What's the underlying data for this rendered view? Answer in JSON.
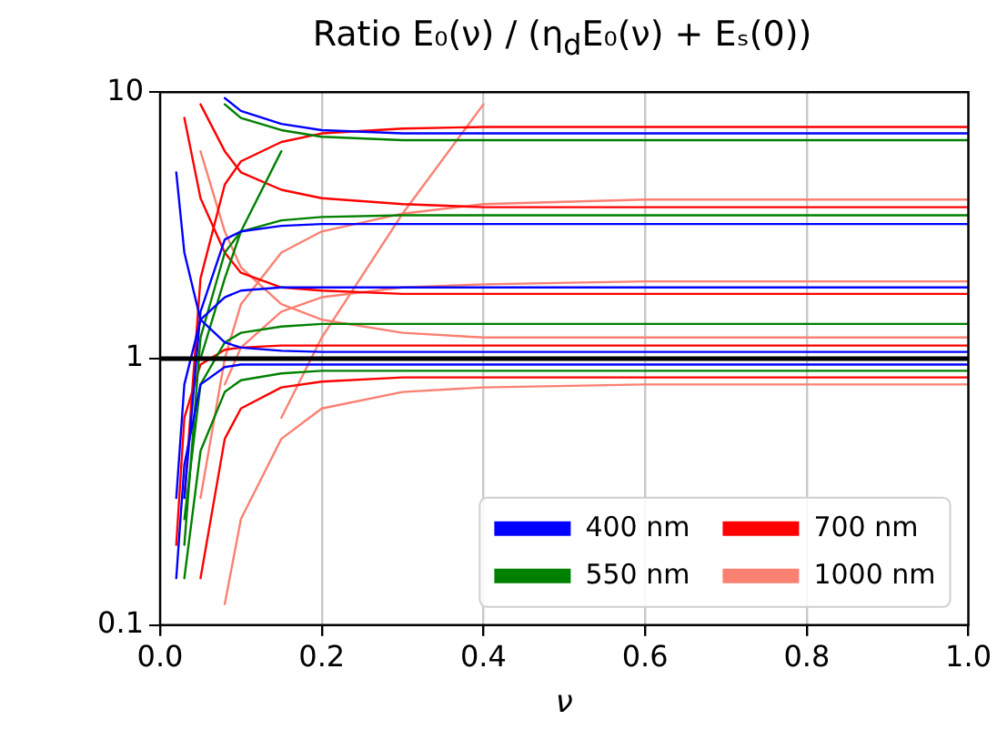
{
  "chart_data": {
    "type": "line",
    "title": "Ratio E₀(ν) / (η$_{d}$E₀(ν) + Eₛ(0))",
    "xlabel": "ν",
    "log": "y",
    "grid": "x",
    "legend": "bottom right",
    "marker": "none",
    "line_style": "solid",
    "xlim": [
      0,
      1
    ],
    "xticks": [
      {
        "value": 0,
        "label": "0.0"
      },
      0.2,
      0.4,
      0.6,
      0.8,
      {
        "value": 1,
        "label": "1.0"
      }
    ],
    "ylim": [
      0.1,
      10
    ],
    "yticks": [
      0.1,
      1,
      10
    ],
    "x": [
      0.02,
      0.03,
      0.05,
      0.08,
      0.1,
      0.15,
      0.2,
      0.3,
      0.4,
      0.6,
      1.0
    ],
    "ref_lines": [
      {
        "axis": "y",
        "value": 1,
        "color": "#000000"
      }
    ],
    "series": [
      {
        "name": "400 nm",
        "color": "#0000ff",
        "values": [
          0.15,
          0.4,
          0.8,
          0.93,
          0.95,
          0.95,
          0.95,
          0.95,
          0.95,
          0.95,
          0.95
        ]
      },
      {
        "color": "#0000ff",
        "values": [
          null,
          null,
          null,
          9.5,
          8.5,
          7.6,
          7.2,
          7,
          7,
          7,
          7
        ]
      },
      {
        "color": "#0000ff",
        "values": [
          0.3,
          0.8,
          1.4,
          1.7,
          1.8,
          1.85,
          1.85,
          1.85,
          1.85,
          1.85,
          1.85
        ]
      },
      {
        "color": "#0000ff",
        "values": [
          5,
          2.5,
          1.4,
          1.15,
          1.1,
          1.07,
          1.06,
          1.06,
          1.06,
          1.06,
          1.06
        ]
      },
      {
        "color": "#0000ff",
        "values": [
          null,
          0.3,
          1.5,
          2.8,
          3,
          3.15,
          3.2,
          3.2,
          3.2,
          3.2,
          3.2
        ]
      },
      {
        "name": "550 nm",
        "color": "#008000",
        "values": [
          null,
          0.15,
          0.45,
          0.75,
          0.83,
          0.88,
          0.9,
          0.9,
          0.9,
          0.9,
          0.9
        ]
      },
      {
        "color": "#008000",
        "values": [
          null,
          0.2,
          1.2,
          2.5,
          3,
          3.3,
          3.4,
          3.45,
          3.45,
          3.45,
          3.45
        ]
      },
      {
        "color": "#008000",
        "values": [
          null,
          0.25,
          0.8,
          1.15,
          1.25,
          1.32,
          1.35,
          1.35,
          1.35,
          1.35,
          1.35
        ]
      },
      {
        "color": "#008000",
        "values": [
          null,
          null,
          1,
          2,
          3,
          6,
          null,
          null,
          null,
          null,
          null
        ]
      },
      {
        "color": "#008000",
        "values": [
          null,
          null,
          null,
          9,
          8,
          7.2,
          6.8,
          6.6,
          6.6,
          6.6,
          6.6
        ]
      },
      {
        "name": "700 nm",
        "color": "#ff0000",
        "values": [
          null,
          null,
          0.15,
          0.5,
          0.65,
          0.78,
          0.82,
          0.85,
          0.85,
          0.85,
          0.85
        ]
      },
      {
        "color": "#ff0000",
        "values": [
          null,
          null,
          9,
          6,
          5,
          4.3,
          4,
          3.8,
          3.7,
          3.7,
          3.7
        ]
      },
      {
        "color": "#ff0000",
        "values": [
          null,
          0.3,
          2,
          4.5,
          5.5,
          6.5,
          7,
          7.3,
          7.4,
          7.4,
          7.4
        ]
      },
      {
        "color": "#ff0000",
        "values": [
          null,
          8,
          4,
          2.5,
          2.1,
          1.85,
          1.8,
          1.75,
          1.75,
          1.75,
          1.75
        ]
      },
      {
        "color": "#ff0000",
        "values": [
          0.2,
          0.6,
          0.95,
          1.08,
          1.1,
          1.12,
          1.12,
          1.12,
          1.12,
          1.12,
          1.12
        ]
      },
      {
        "name": "1000 nm",
        "color": "#fa8072",
        "values": [
          null,
          null,
          null,
          0.12,
          0.25,
          0.5,
          0.65,
          0.75,
          0.78,
          0.8,
          0.8
        ]
      },
      {
        "color": "#fa8072",
        "values": [
          null,
          null,
          0.3,
          1,
          1.6,
          2.5,
          3,
          3.5,
          3.8,
          3.95,
          3.95
        ]
      },
      {
        "color": "#fa8072",
        "values": [
          null,
          null,
          null,
          null,
          null,
          0.6,
          1.2,
          3.5,
          9,
          null,
          null
        ]
      },
      {
        "color": "#fa8072",
        "values": [
          null,
          null,
          6,
          3,
          2.2,
          1.6,
          1.4,
          1.25,
          1.2,
          1.2,
          1.2
        ]
      },
      {
        "color": "#fa8072",
        "values": [
          null,
          null,
          null,
          0.8,
          1.1,
          1.5,
          1.7,
          1.85,
          1.9,
          1.95,
          1.95
        ]
      }
    ]
  }
}
